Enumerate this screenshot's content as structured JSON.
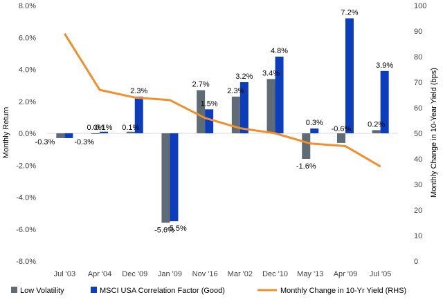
{
  "chart_data": {
    "type": "bar",
    "categories": [
      "Jul '03",
      "Apr '04",
      "Dec '09",
      "Jan '09",
      "Nov '16",
      "Mar '02",
      "Dec '10",
      "May '13",
      "Apr '09",
      "Jul '05"
    ],
    "series": [
      {
        "name": "Low Volatility",
        "type": "bar",
        "axis": "left",
        "color": "#5f6b75",
        "values": [
          -0.3,
          0.0,
          0.1,
          -5.6,
          2.7,
          2.3,
          3.4,
          -1.6,
          -0.6,
          0.2
        ],
        "labels": [
          "-0.3%",
          "0.0%",
          "0.1%",
          "-5.6%",
          "2.7%",
          "2.3%",
          "3.4%",
          "-1.6%",
          "-0.6%",
          "0.2%"
        ]
      },
      {
        "name": "MSCI USA Correlation Factor (Good)",
        "type": "bar",
        "axis": "left",
        "color": "#0b3dbd",
        "values": [
          -0.3,
          0.1,
          2.3,
          -5.5,
          1.5,
          3.2,
          4.8,
          0.3,
          7.2,
          3.9
        ],
        "labels": [
          "-0.3%",
          "0.1%",
          "2.3%",
          "-5.5%",
          "1.5%",
          "3.2%",
          "4.8%",
          "0.3%",
          "7.2%",
          "3.9%"
        ]
      },
      {
        "name": "Monthly Change in 10-Yr Yield (RHS)",
        "type": "line",
        "axis": "right",
        "color": "#f28e2b",
        "values": [
          89,
          67,
          64,
          63,
          56,
          52,
          50,
          46,
          45,
          37
        ]
      }
    ],
    "title": "",
    "xlabel": "",
    "ylabel": "Monthly Return",
    "y2label": "Monthly Change in 10-Year Yield (bps)",
    "ylim": [
      -8,
      8
    ],
    "y2lim": [
      0,
      100
    ],
    "yticks": [
      "-8.0%",
      "-6.0%",
      "-4.0%",
      "-2.0%",
      "0.0%",
      "2.0%",
      "4.0%",
      "6.0%",
      "8.0%"
    ],
    "y2ticks": [
      "0",
      "10",
      "20",
      "30",
      "40",
      "50",
      "60",
      "70",
      "80",
      "90",
      "100"
    ],
    "grid": false,
    "legend_position": "bottom"
  }
}
